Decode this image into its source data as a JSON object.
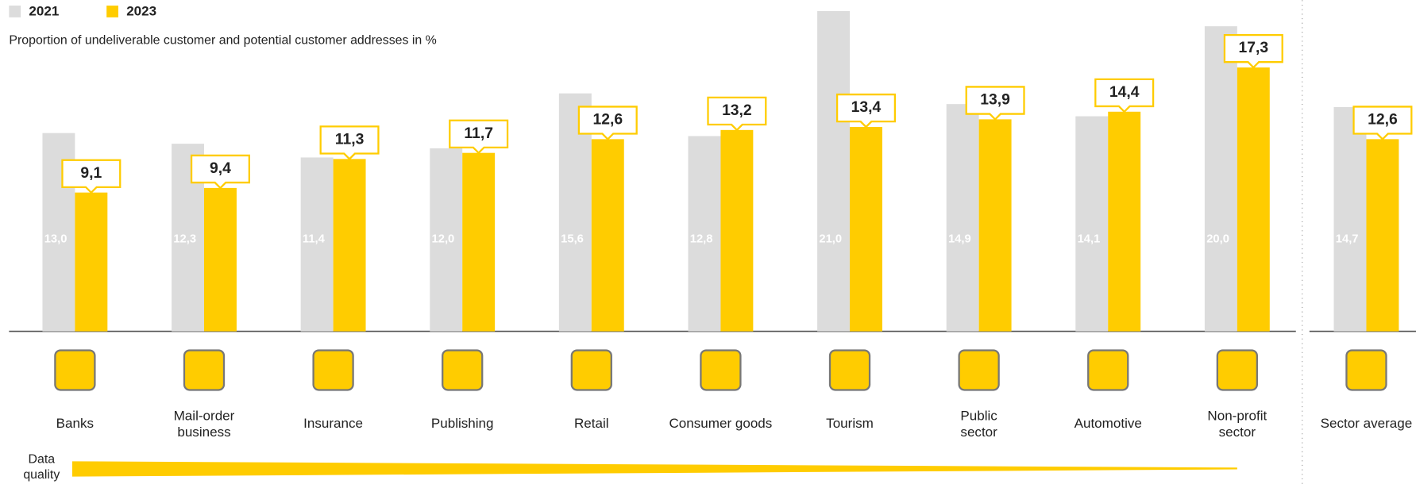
{
  "chart_data": {
    "type": "bar",
    "subtitle": "Proportion of undeliverable customer and potential customer addresses in %",
    "categories": [
      "Banks",
      "Mail-order\nbusiness",
      "Insurance",
      "Publishing",
      "Retail",
      "Consumer goods",
      "Tourism",
      "Public\nsector",
      "Automotive",
      "Non-profit\nsector",
      "Sector average"
    ],
    "series": [
      {
        "name": "2021",
        "color": "#dcdcdc",
        "values": [
          13.0,
          12.3,
          11.4,
          12.0,
          15.6,
          12.8,
          21.0,
          14.9,
          14.1,
          20.0,
          14.7
        ],
        "value_labels": [
          "13,0",
          "12,3",
          "11,4",
          "12,0",
          "15,6",
          "12,8",
          "21,0",
          "14,9",
          "14,1",
          "20,0",
          "14,7"
        ]
      },
      {
        "name": "2023",
        "color": "#ffcc00",
        "values": [
          9.1,
          9.4,
          11.3,
          11.7,
          12.6,
          13.2,
          13.4,
          13.9,
          14.4,
          17.3,
          12.6
        ],
        "value_labels": [
          "9,1",
          "9,4",
          "11,3",
          "11,7",
          "12,6",
          "13,2",
          "13,4",
          "13,9",
          "14,4",
          "17,3",
          "12,6"
        ]
      }
    ],
    "ylim": [
      0,
      21
    ],
    "annotation": "Data\nquality"
  }
}
